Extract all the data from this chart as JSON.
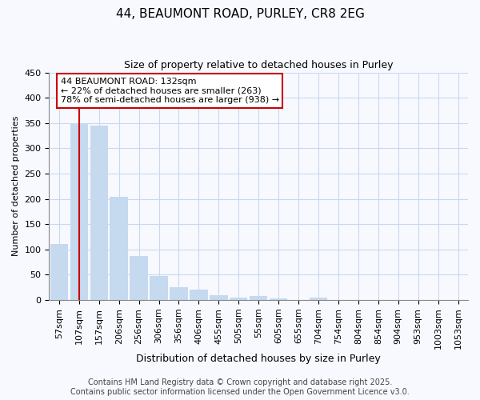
{
  "title_line1": "44, BEAUMONT ROAD, PURLEY, CR8 2EG",
  "title_line2": "Size of property relative to detached houses in Purley",
  "xlabel": "Distribution of detached houses by size in Purley",
  "ylabel": "Number of detached properties",
  "categories": [
    "57sqm",
    "107sqm",
    "157sqm",
    "206sqm",
    "256sqm",
    "306sqm",
    "356sqm",
    "406sqm",
    "455sqm",
    "505sqm",
    "55sqm",
    "605sqm",
    "655sqm",
    "704sqm",
    "754sqm",
    "804sqm",
    "854sqm",
    "904sqm",
    "953sqm",
    "1003sqm",
    "1053sqm"
  ],
  "values": [
    110,
    350,
    345,
    204,
    87,
    47,
    25,
    20,
    10,
    5,
    8,
    3,
    0,
    5,
    0,
    0,
    0,
    0,
    0,
    0,
    0
  ],
  "bar_color": "#c5d9ef",
  "bar_edge_color": "#c5d9ef",
  "ylim": [
    0,
    450
  ],
  "yticks": [
    0,
    50,
    100,
    150,
    200,
    250,
    300,
    350,
    400,
    450
  ],
  "vline_x": 1.0,
  "vline_color": "#cc0000",
  "annotation_text": "44 BEAUMONT ROAD: 132sqm\n← 22% of detached houses are smaller (263)\n78% of semi-detached houses are larger (938) →",
  "footer_text": "Contains HM Land Registry data © Crown copyright and database right 2025.\nContains public sector information licensed under the Open Government Licence v3.0.",
  "background_color": "#f7f9ff",
  "grid_color": "#c8d8f0",
  "title_fontsize": 11,
  "subtitle_fontsize": 9,
  "ylabel_fontsize": 8,
  "xlabel_fontsize": 9,
  "tick_fontsize": 8,
  "footer_fontsize": 7
}
